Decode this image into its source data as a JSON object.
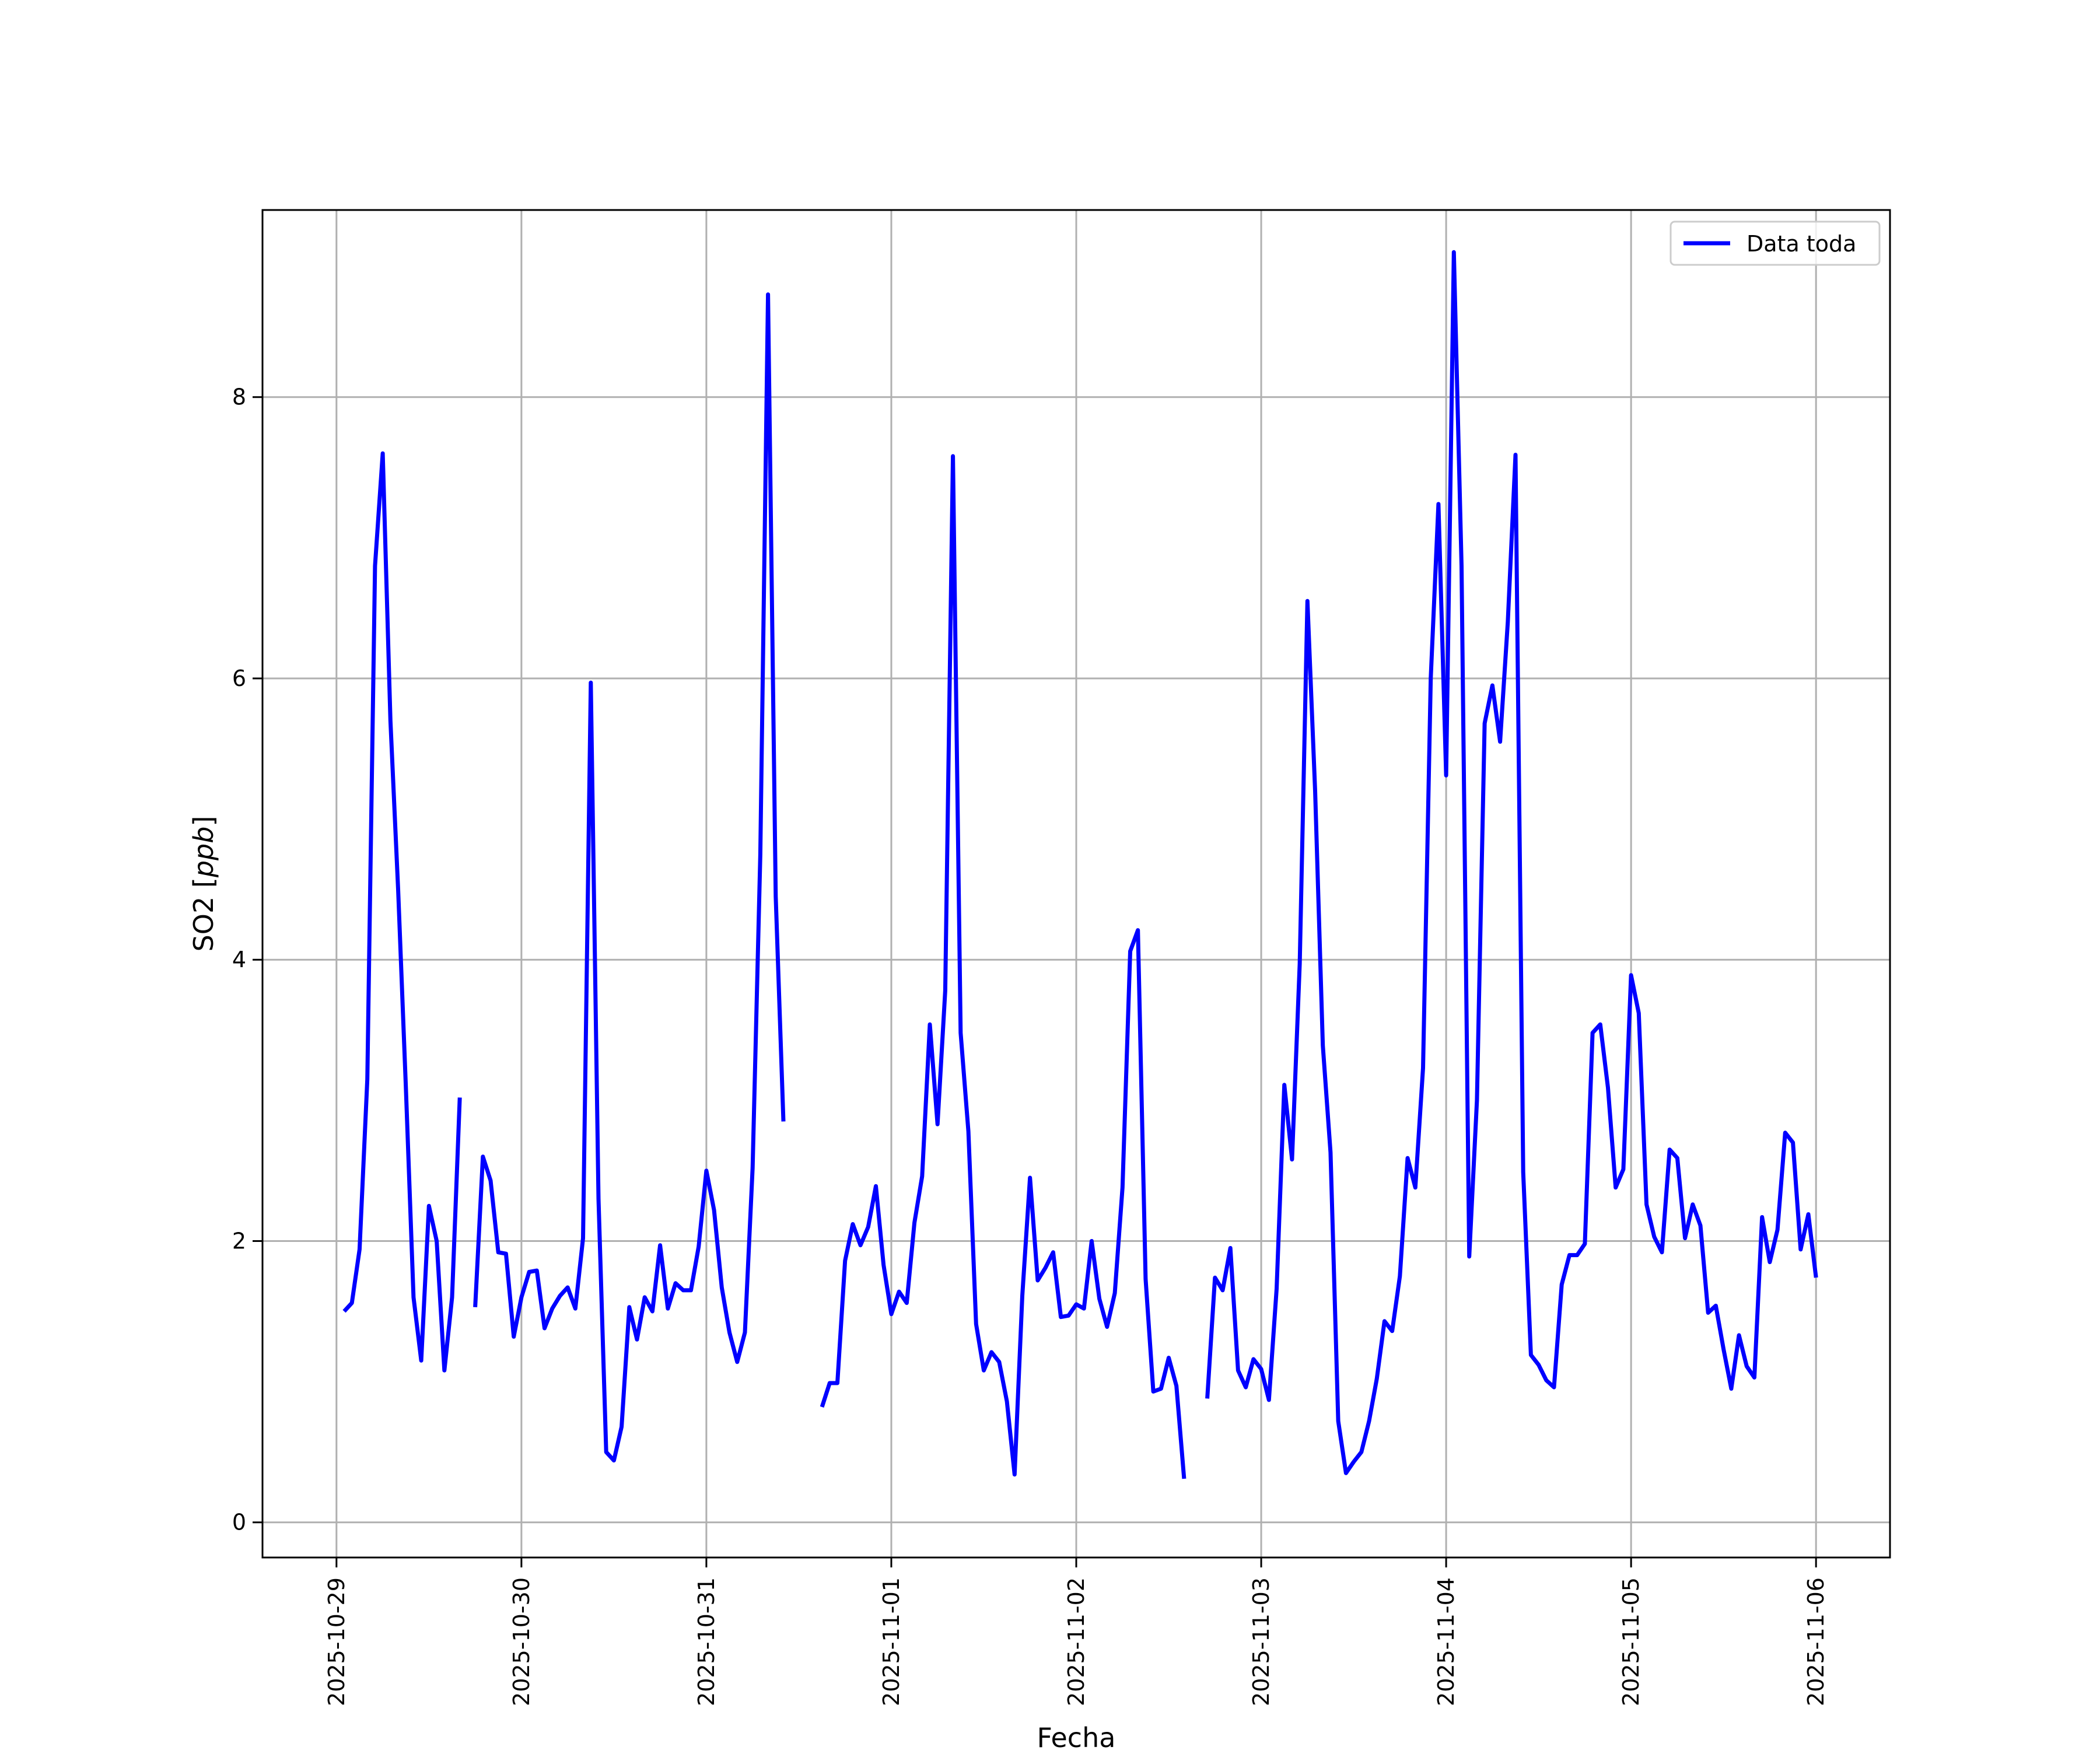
{
  "chart_data": {
    "type": "line",
    "xlabel": "Fecha",
    "ylabel": "SO2 [ppb]",
    "ylabel_main": "SO2 ",
    "ylabel_unit": "ppb",
    "ylim": [
      -0.25,
      9.33
    ],
    "xlim": [
      "2025-10-28 14:24",
      "2025-11-06 09:36"
    ],
    "grid": true,
    "legend_position": "top-right",
    "y_ticks": [
      0,
      2,
      4,
      6,
      8
    ],
    "x_ticks": [
      "2025-10-29",
      "2025-10-30",
      "2025-10-31",
      "2025-11-01",
      "2025-11-02",
      "2025-11-03",
      "2025-11-04",
      "2025-11-05",
      "2025-11-06"
    ],
    "series": [
      {
        "name": "Data toda",
        "color": "#0000ff",
        "segments": [
          [
            [
              "2025-10-29 01:00",
              1.5
            ],
            [
              "2025-10-29 02:00",
              1.56
            ],
            [
              "2025-10-29 03:00",
              1.94
            ],
            [
              "2025-10-29 04:00",
              3.15
            ],
            [
              "2025-10-29 05:00",
              6.8
            ],
            [
              "2025-10-29 06:00",
              7.6
            ],
            [
              "2025-10-29 07:00",
              5.7
            ],
            [
              "2025-10-29 08:00",
              4.5
            ],
            [
              "2025-10-29 09:00",
              3.1
            ],
            [
              "2025-10-29 10:00",
              1.6
            ],
            [
              "2025-10-29 11:00",
              1.15
            ],
            [
              "2025-10-29 12:00",
              2.25
            ],
            [
              "2025-10-29 13:00",
              2.0
            ],
            [
              "2025-10-29 14:00",
              1.08
            ],
            [
              "2025-10-29 15:00",
              1.6
            ],
            [
              "2025-10-29 16:00",
              3.02
            ]
          ],
          [
            [
              "2025-10-29 18:00",
              1.53
            ],
            [
              "2025-10-29 19:00",
              2.6
            ],
            [
              "2025-10-29 20:00",
              2.43
            ],
            [
              "2025-10-29 21:00",
              1.92
            ],
            [
              "2025-10-29 22:00",
              1.91
            ],
            [
              "2025-10-29 23:00",
              1.32
            ],
            [
              "2025-10-30 00:00",
              1.6
            ],
            [
              "2025-10-30 01:00",
              1.78
            ],
            [
              "2025-10-30 02:00",
              1.79
            ],
            [
              "2025-10-30 03:00",
              1.38
            ],
            [
              "2025-10-30 04:00",
              1.52
            ],
            [
              "2025-10-30 05:00",
              1.61
            ],
            [
              "2025-10-30 06:00",
              1.67
            ],
            [
              "2025-10-30 07:00",
              1.52
            ],
            [
              "2025-10-30 08:00",
              2.02
            ],
            [
              "2025-10-30 09:00",
              5.97
            ],
            [
              "2025-10-30 10:00",
              2.3
            ],
            [
              "2025-10-30 11:00",
              0.5
            ],
            [
              "2025-10-30 12:00",
              0.44
            ],
            [
              "2025-10-30 13:00",
              0.68
            ],
            [
              "2025-10-30 14:00",
              1.53
            ],
            [
              "2025-10-30 15:00",
              1.3
            ],
            [
              "2025-10-30 16:00",
              1.6
            ],
            [
              "2025-10-30 17:00",
              1.5
            ],
            [
              "2025-10-30 18:00",
              1.97
            ],
            [
              "2025-10-30 19:00",
              1.52
            ],
            [
              "2025-10-30 20:00",
              1.7
            ],
            [
              "2025-10-30 21:00",
              1.65
            ],
            [
              "2025-10-30 22:00",
              1.65
            ],
            [
              "2025-10-30 23:00",
              1.96
            ],
            [
              "2025-10-31 00:00",
              2.5
            ],
            [
              "2025-10-31 01:00",
              2.22
            ],
            [
              "2025-10-31 02:00",
              1.67
            ],
            [
              "2025-10-31 03:00",
              1.35
            ],
            [
              "2025-10-31 04:00",
              1.14
            ],
            [
              "2025-10-31 05:00",
              1.35
            ],
            [
              "2025-10-31 06:00",
              2.52
            ],
            [
              "2025-10-31 07:00",
              4.75
            ],
            [
              "2025-10-31 08:00",
              8.73
            ],
            [
              "2025-10-31 09:00",
              4.45
            ],
            [
              "2025-10-31 10:00",
              2.85
            ]
          ],
          [
            [
              "2025-10-31 15:00",
              0.82
            ],
            [
              "2025-10-31 16:00",
              0.99
            ],
            [
              "2025-10-31 17:00",
              0.99
            ],
            [
              "2025-10-31 18:00",
              1.86
            ],
            [
              "2025-10-31 19:00",
              2.12
            ],
            [
              "2025-10-31 20:00",
              1.97
            ],
            [
              "2025-10-31 21:00",
              2.1
            ],
            [
              "2025-10-31 22:00",
              2.39
            ],
            [
              "2025-10-31 23:00",
              1.83
            ],
            [
              "2025-11-01 00:00",
              1.48
            ],
            [
              "2025-11-01 01:00",
              1.64
            ],
            [
              "2025-11-01 02:00",
              1.56
            ],
            [
              "2025-11-01 03:00",
              2.13
            ],
            [
              "2025-11-01 04:00",
              2.46
            ],
            [
              "2025-11-01 05:00",
              3.54
            ],
            [
              "2025-11-01 06:00",
              2.83
            ],
            [
              "2025-11-01 07:00",
              3.78
            ],
            [
              "2025-11-01 08:00",
              7.58
            ],
            [
              "2025-11-01 09:00",
              3.48
            ],
            [
              "2025-11-01 10:00",
              2.78
            ],
            [
              "2025-11-01 11:00",
              1.41
            ],
            [
              "2025-11-01 12:00",
              1.08
            ],
            [
              "2025-11-01 13:00",
              1.21
            ],
            [
              "2025-11-01 14:00",
              1.14
            ],
            [
              "2025-11-01 15:00",
              0.86
            ],
            [
              "2025-11-01 16:00",
              0.34
            ],
            [
              "2025-11-01 17:00",
              1.61
            ],
            [
              "2025-11-01 18:00",
              2.45
            ],
            [
              "2025-11-01 19:00",
              1.72
            ],
            [
              "2025-11-01 20:00",
              1.81
            ],
            [
              "2025-11-01 21:00",
              1.92
            ],
            [
              "2025-11-01 22:00",
              1.46
            ],
            [
              "2025-11-01 23:00",
              1.47
            ],
            [
              "2025-11-02 00:00",
              1.55
            ],
            [
              "2025-11-02 01:00",
              1.52
            ],
            [
              "2025-11-02 02:00",
              2.0
            ],
            [
              "2025-11-02 03:00",
              1.59
            ],
            [
              "2025-11-02 04:00",
              1.39
            ],
            [
              "2025-11-02 05:00",
              1.63
            ],
            [
              "2025-11-02 06:00",
              2.38
            ],
            [
              "2025-11-02 07:00",
              4.06
            ],
            [
              "2025-11-02 08:00",
              4.21
            ],
            [
              "2025-11-02 09:00",
              1.73
            ],
            [
              "2025-11-02 10:00",
              0.93
            ],
            [
              "2025-11-02 11:00",
              0.95
            ],
            [
              "2025-11-02 12:00",
              1.17
            ],
            [
              "2025-11-02 13:00",
              0.97
            ],
            [
              "2025-11-02 14:00",
              0.31
            ]
          ],
          [
            [
              "2025-11-02 17:00",
              0.88
            ],
            [
              "2025-11-02 18:00",
              1.74
            ],
            [
              "2025-11-02 19:00",
              1.65
            ],
            [
              "2025-11-02 20:00",
              1.95
            ],
            [
              "2025-11-02 21:00",
              1.08
            ],
            [
              "2025-11-02 22:00",
              0.96
            ],
            [
              "2025-11-02 23:00",
              1.16
            ],
            [
              "2025-11-03 00:00",
              1.09
            ],
            [
              "2025-11-03 01:00",
              0.87
            ],
            [
              "2025-11-03 02:00",
              1.66
            ],
            [
              "2025-11-03 03:00",
              3.11
            ],
            [
              "2025-11-03 04:00",
              2.58
            ],
            [
              "2025-11-03 05:00",
              3.97
            ],
            [
              "2025-11-03 06:00",
              6.55
            ],
            [
              "2025-11-03 07:00",
              5.2
            ],
            [
              "2025-11-03 08:00",
              3.39
            ],
            [
              "2025-11-03 09:00",
              2.63
            ],
            [
              "2025-11-03 10:00",
              0.72
            ],
            [
              "2025-11-03 11:00",
              0.35
            ],
            [
              "2025-11-03 12:00",
              0.43
            ],
            [
              "2025-11-03 13:00",
              0.5
            ],
            [
              "2025-11-03 14:00",
              0.72
            ],
            [
              "2025-11-03 15:00",
              1.02
            ],
            [
              "2025-11-03 16:00",
              1.43
            ],
            [
              "2025-11-03 17:00",
              1.36
            ],
            [
              "2025-11-03 18:00",
              1.75
            ],
            [
              "2025-11-03 19:00",
              2.59
            ],
            [
              "2025-11-03 20:00",
              2.38
            ],
            [
              "2025-11-03 21:00",
              3.23
            ],
            [
              "2025-11-03 22:00",
              6.0
            ],
            [
              "2025-11-03 23:00",
              7.24
            ],
            [
              "2025-11-04 00:00",
              5.31
            ],
            [
              "2025-11-04 01:00",
              9.03
            ],
            [
              "2025-11-04 02:00",
              6.8
            ],
            [
              "2025-11-04 03:00",
              1.89
            ],
            [
              "2025-11-04 04:00",
              3.0
            ],
            [
              "2025-11-04 05:00",
              5.68
            ],
            [
              "2025-11-04 06:00",
              5.95
            ],
            [
              "2025-11-04 07:00",
              5.55
            ],
            [
              "2025-11-04 08:00",
              6.4
            ],
            [
              "2025-11-04 09:00",
              7.59
            ],
            [
              "2025-11-04 10:00",
              2.49
            ],
            [
              "2025-11-04 11:00",
              1.19
            ],
            [
              "2025-11-04 12:00",
              1.12
            ],
            [
              "2025-11-04 13:00",
              1.01
            ],
            [
              "2025-11-04 14:00",
              0.96
            ],
            [
              "2025-11-04 15:00",
              1.69
            ],
            [
              "2025-11-04 16:00",
              1.9
            ],
            [
              "2025-11-04 17:00",
              1.9
            ],
            [
              "2025-11-04 18:00",
              1.98
            ],
            [
              "2025-11-04 19:00",
              3.48
            ],
            [
              "2025-11-04 20:00",
              3.54
            ],
            [
              "2025-11-04 21:00",
              3.09
            ],
            [
              "2025-11-04 22:00",
              2.38
            ],
            [
              "2025-11-04 23:00",
              2.51
            ],
            [
              "2025-11-05 00:00",
              3.89
            ],
            [
              "2025-11-05 01:00",
              3.62
            ],
            [
              "2025-11-05 02:00",
              2.26
            ],
            [
              "2025-11-05 03:00",
              2.03
            ],
            [
              "2025-11-05 04:00",
              1.92
            ],
            [
              "2025-11-05 05:00",
              2.65
            ],
            [
              "2025-11-05 06:00",
              2.59
            ],
            [
              "2025-11-05 07:00",
              2.02
            ],
            [
              "2025-11-05 08:00",
              2.26
            ],
            [
              "2025-11-05 09:00",
              2.11
            ],
            [
              "2025-11-05 10:00",
              1.49
            ],
            [
              "2025-11-05 11:00",
              1.54
            ],
            [
              "2025-11-05 12:00",
              1.23
            ],
            [
              "2025-11-05 13:00",
              0.95
            ],
            [
              "2025-11-05 14:00",
              1.33
            ],
            [
              "2025-11-05 15:00",
              1.11
            ],
            [
              "2025-11-05 16:00",
              1.03
            ],
            [
              "2025-11-05 17:00",
              2.17
            ],
            [
              "2025-11-05 18:00",
              1.85
            ],
            [
              "2025-11-05 19:00",
              2.08
            ],
            [
              "2025-11-05 20:00",
              2.77
            ],
            [
              "2025-11-05 21:00",
              2.7
            ],
            [
              "2025-11-05 22:00",
              1.94
            ],
            [
              "2025-11-05 23:00",
              2.19
            ],
            [
              "2025-11-06 00:00",
              1.74
            ]
          ]
        ]
      }
    ]
  }
}
